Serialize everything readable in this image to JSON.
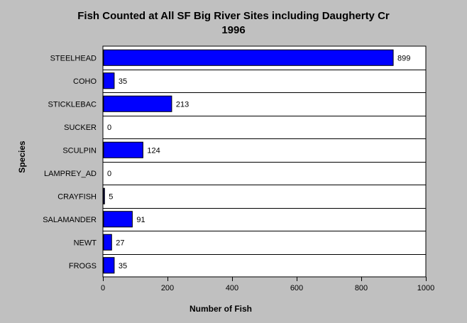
{
  "chart_data": {
    "type": "bar",
    "orientation": "horizontal",
    "title": "Fish Counted at All SF Big River Sites including Daugherty Cr",
    "subtitle": "1996",
    "xlabel": "Number of Fish",
    "ylabel": "Species",
    "xlim": [
      0,
      1000
    ],
    "xticks": [
      0,
      200,
      400,
      600,
      800,
      1000
    ],
    "categories": [
      "STEELHEAD",
      "COHO",
      "STICKLEBAC",
      "SUCKER",
      "SCULPIN",
      "LAMPREY_AD",
      "CRAYFISH",
      "SALAMANDER",
      "NEWT",
      "FROGS"
    ],
    "values": [
      899,
      35,
      213,
      0,
      124,
      0,
      5,
      91,
      27,
      35
    ],
    "bar_color": "#0000ff",
    "plot_background": "#ffffff",
    "page_background": "#c0c0c0",
    "grid": "horizontal separators between categories"
  }
}
